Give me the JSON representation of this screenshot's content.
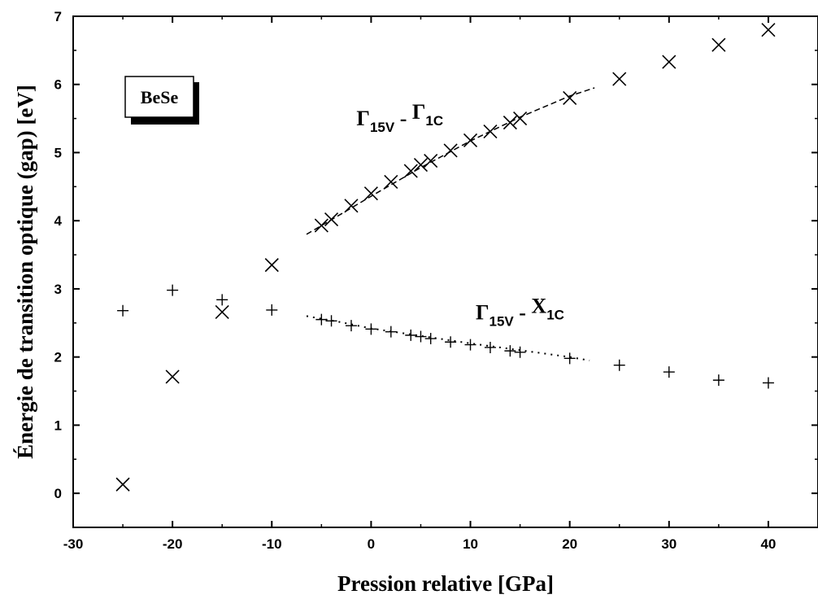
{
  "chart_data": {
    "type": "scatter",
    "xlabel": "Pression relative [GPa]",
    "ylabel": "Énergie de transition optique (gap) [eV]",
    "xlim": [
      -30,
      45
    ],
    "ylim": [
      -0.5,
      7
    ],
    "x_ticks": [
      -30,
      -20,
      -10,
      0,
      10,
      20,
      30,
      40
    ],
    "y_ticks": [
      0,
      1,
      2,
      3,
      4,
      5,
      6,
      7
    ],
    "grid": false,
    "badge": "BeSe",
    "annotations": [
      {
        "main": "Γ",
        "sub": "15V",
        "sep": " - ",
        "main2": "Γ",
        "sub2": "1C",
        "x": 0,
        "y": 5.4
      },
      {
        "main": "Γ",
        "sub": "15V",
        "sep": " - ",
        "main2": "X",
        "sub2": "1C",
        "x": 12,
        "y": 2.55
      }
    ],
    "series": [
      {
        "marker": "x",
        "points": [
          [
            -25,
            0.13
          ],
          [
            -20,
            1.71
          ],
          [
            -15,
            2.66
          ],
          [
            -10,
            3.35
          ],
          [
            -5,
            3.93
          ],
          [
            -4,
            4.02
          ],
          [
            -2,
            4.22
          ],
          [
            0,
            4.4
          ],
          [
            2,
            4.57
          ],
          [
            4,
            4.73
          ],
          [
            5,
            4.82
          ],
          [
            6,
            4.88
          ],
          [
            8,
            5.03
          ],
          [
            10,
            5.18
          ],
          [
            12,
            5.31
          ],
          [
            14,
            5.44
          ],
          [
            15,
            5.5
          ],
          [
            20,
            5.8
          ],
          [
            25,
            6.08
          ],
          [
            30,
            6.33
          ],
          [
            35,
            6.58
          ],
          [
            40,
            6.8
          ]
        ]
      },
      {
        "marker": "plus",
        "points": [
          [
            -25,
            2.68
          ],
          [
            -20,
            2.98
          ],
          [
            -15,
            2.84
          ],
          [
            -10,
            2.69
          ],
          [
            -5,
            2.55
          ],
          [
            -4,
            2.53
          ],
          [
            -2,
            2.46
          ],
          [
            0,
            2.41
          ],
          [
            2,
            2.37
          ],
          [
            4,
            2.32
          ],
          [
            5,
            2.3
          ],
          [
            6,
            2.27
          ],
          [
            8,
            2.22
          ],
          [
            10,
            2.18
          ],
          [
            12,
            2.14
          ],
          [
            14,
            2.09
          ],
          [
            15,
            2.07
          ],
          [
            20,
            1.98
          ],
          [
            25,
            1.88
          ],
          [
            30,
            1.78
          ],
          [
            35,
            1.66
          ],
          [
            40,
            1.62
          ]
        ]
      }
    ],
    "fits": [
      {
        "style": "dashed",
        "points": [
          [
            -6.5,
            3.8
          ],
          [
            -3,
            4.1
          ],
          [
            0,
            4.36
          ],
          [
            5,
            4.78
          ],
          [
            10,
            5.17
          ],
          [
            15,
            5.52
          ],
          [
            20,
            5.83
          ],
          [
            22.5,
            5.95
          ]
        ]
      },
      {
        "style": "dotted",
        "points": [
          [
            -6.5,
            2.6
          ],
          [
            -3,
            2.51
          ],
          [
            0,
            2.42
          ],
          [
            5,
            2.31
          ],
          [
            10,
            2.2
          ],
          [
            15,
            2.1
          ],
          [
            20,
            2.0
          ],
          [
            22,
            1.95
          ]
        ]
      }
    ]
  }
}
